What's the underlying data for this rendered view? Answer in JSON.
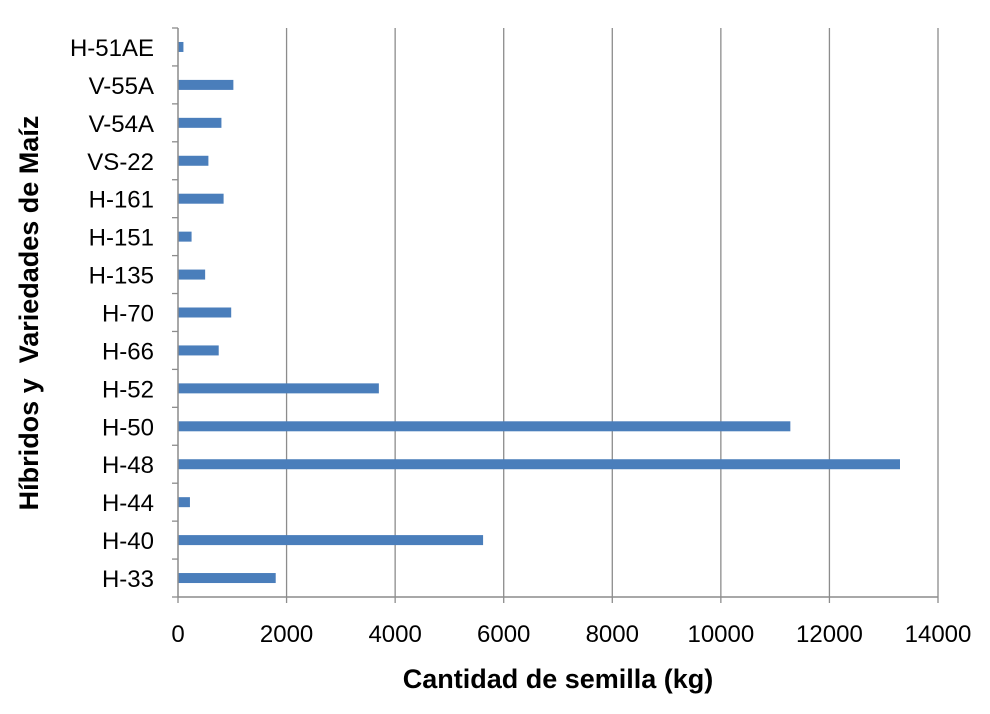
{
  "chart_data": {
    "type": "bar",
    "orientation": "horizontal",
    "title": "",
    "xlabel": "Cantidad de semilla (kg)",
    "ylabel": "Híbridos y  Variedades de Maíz",
    "categories": [
      "H-33",
      "H-40",
      "H-44",
      "H-48",
      "H-50",
      "H-52",
      "H-66",
      "H-70",
      "H-135",
      "H-151",
      "H-161",
      "VS-22",
      "V-54A",
      "V-55A",
      "H-51AE"
    ],
    "values": [
      1800,
      5620,
      220,
      13300,
      11280,
      3700,
      750,
      980,
      500,
      250,
      840,
      560,
      800,
      1020,
      100
    ],
    "xlim": [
      0,
      14000
    ],
    "xticks": [
      "0",
      "2000",
      "4000",
      "6000",
      "8000",
      "10000",
      "12000",
      "14000"
    ],
    "grid": "vertical",
    "bar_color": "#4a7ebb",
    "legend": "none"
  }
}
